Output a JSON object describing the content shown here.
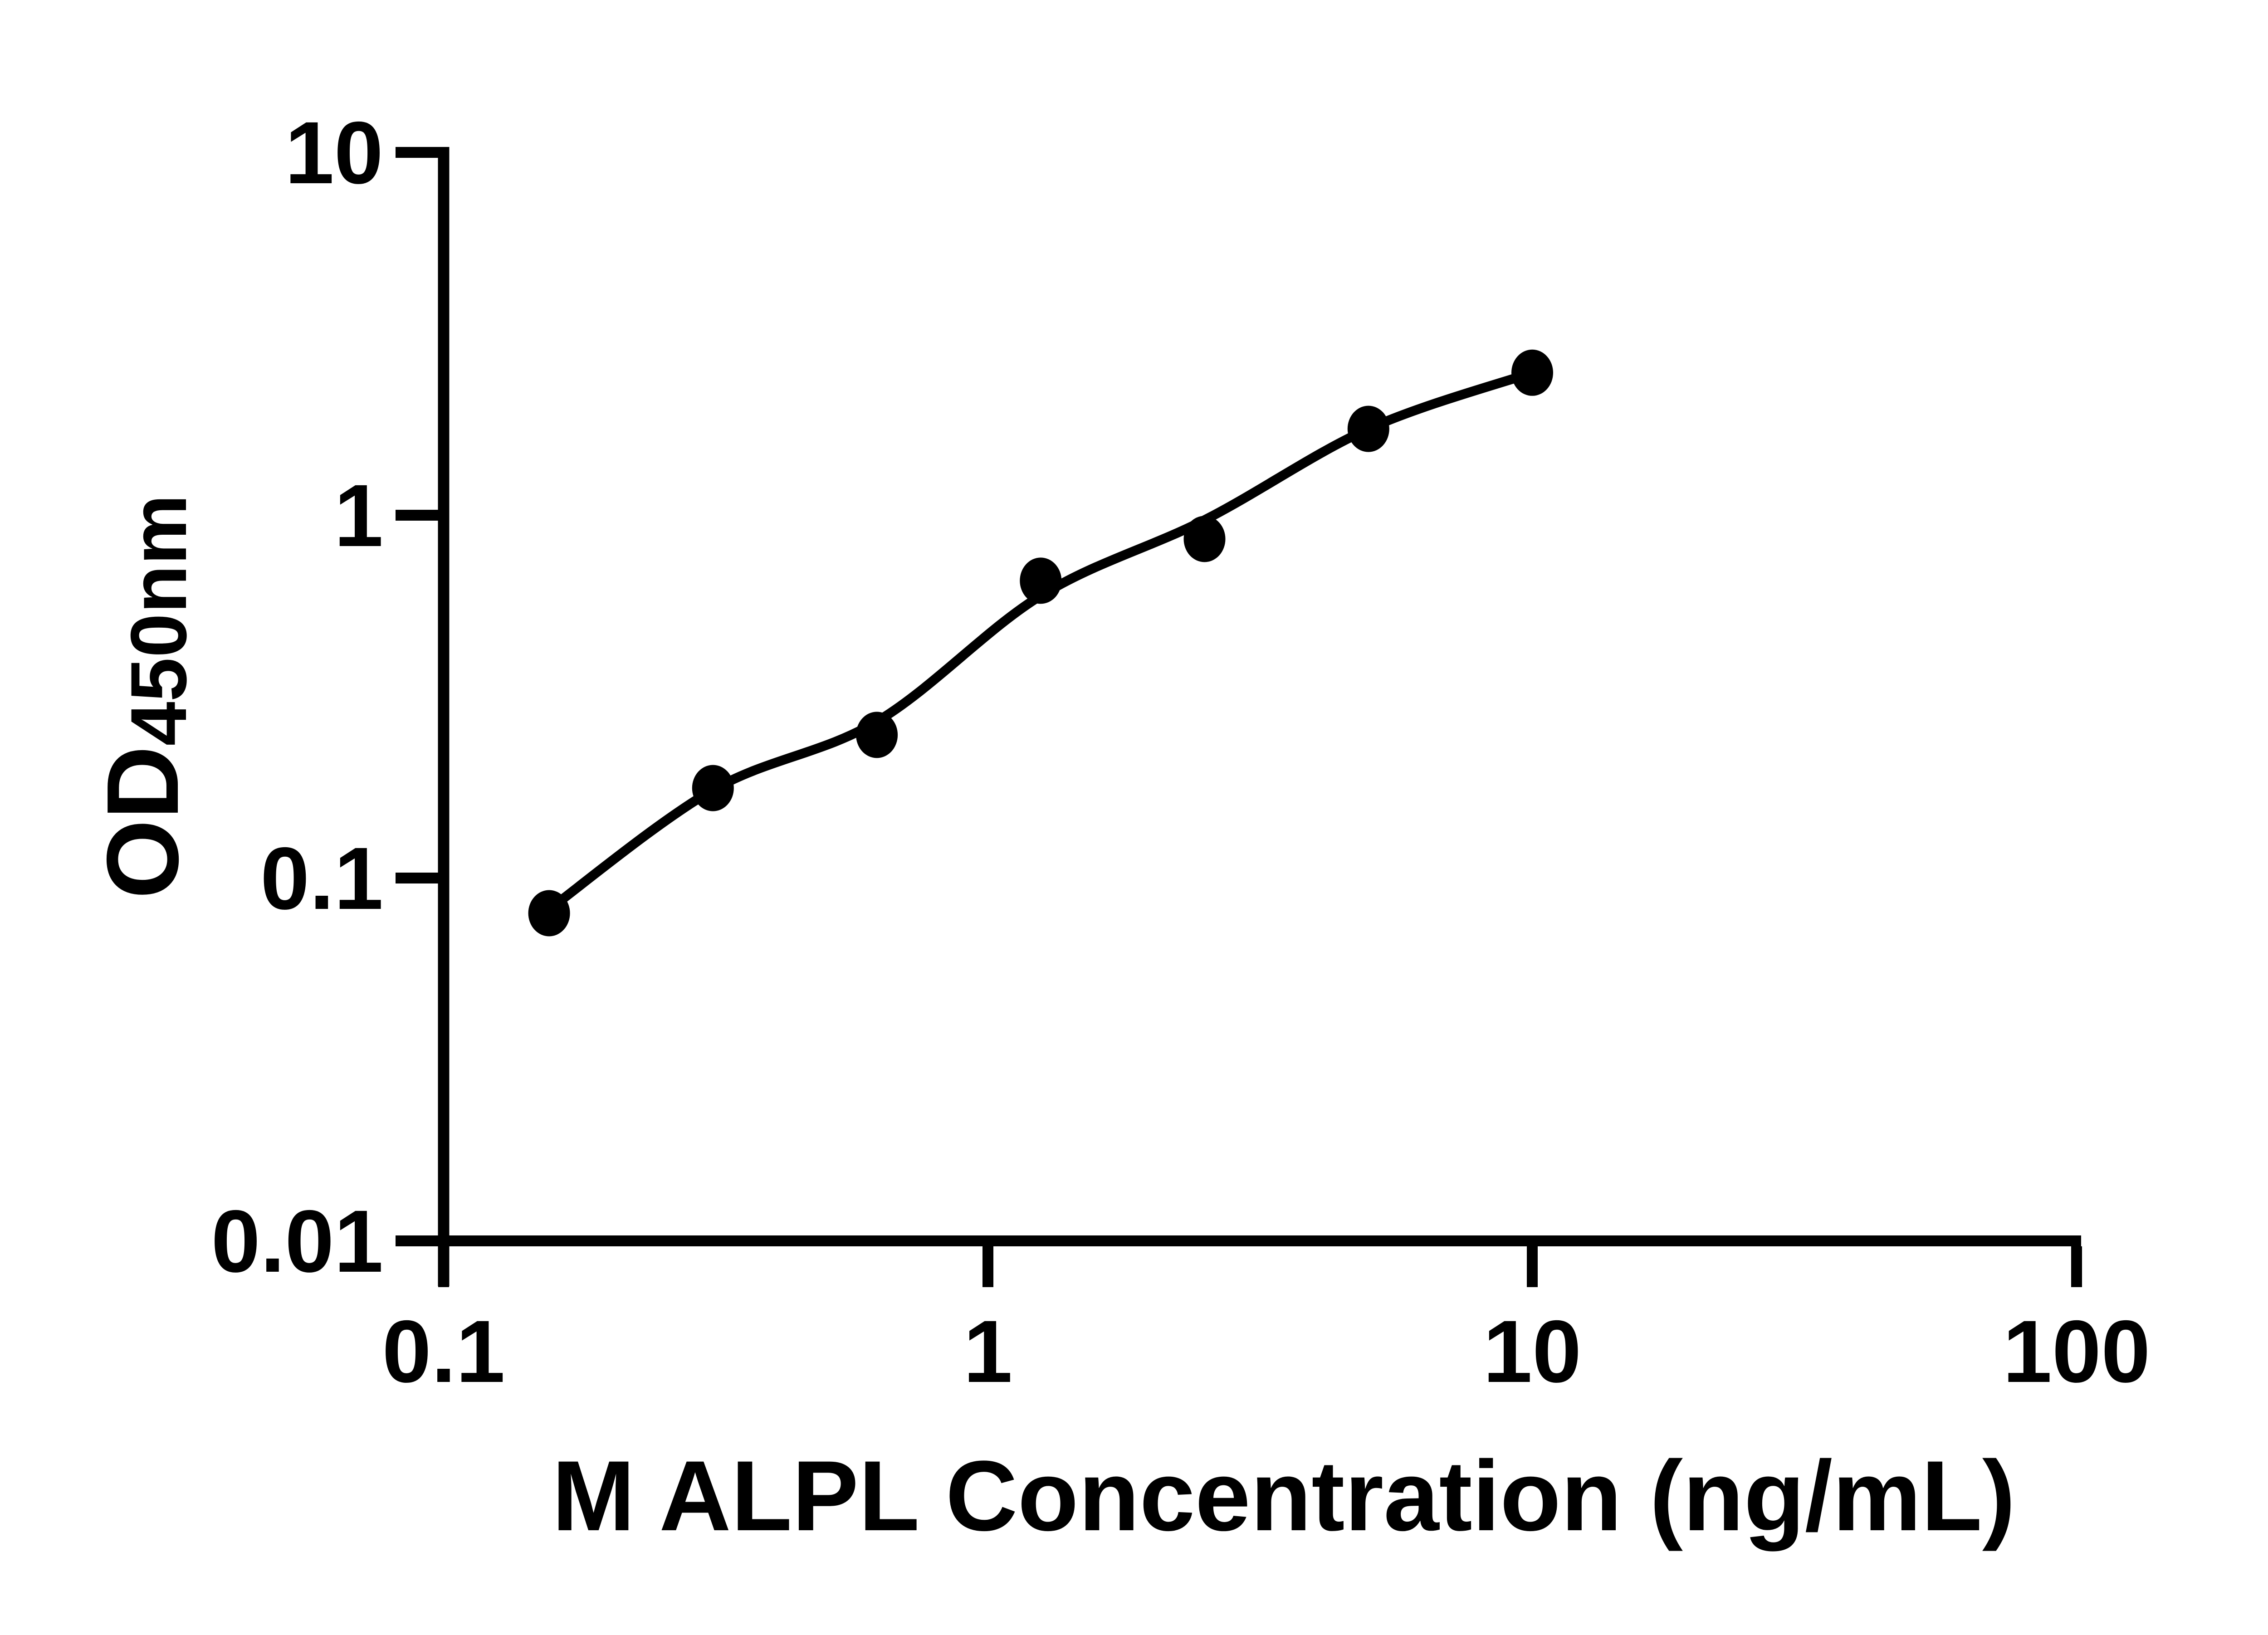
{
  "chart_data": {
    "type": "scatter",
    "subtype": "elisa-standard-curve-with-fit-line",
    "xlabel": "M ALPL Concentration (ng/mL)",
    "ylabel_main": "OD",
    "ylabel_sub": "450nm",
    "x_scale": "log",
    "y_scale": "log",
    "xlim": [
      0.1,
      100
    ],
    "ylim": [
      0.01,
      10
    ],
    "x_ticks": [
      "0.1",
      "1",
      "10",
      "100"
    ],
    "y_ticks": [
      "10",
      "1",
      "0.1",
      "0.01"
    ],
    "legend": "none",
    "grid": "off",
    "points": [
      {
        "x": 0.15625,
        "od": 0.08
      },
      {
        "x": 0.3125,
        "od": 0.177
      },
      {
        "x": 0.625,
        "od": 0.248
      },
      {
        "x": 1.25,
        "od": 0.66
      },
      {
        "x": 2.5,
        "od": 0.86
      },
      {
        "x": 5,
        "od": 1.73
      },
      {
        "x": 10,
        "od": 2.47
      }
    ],
    "fit_curve": [
      {
        "x": 0.15625,
        "od": 0.082
      },
      {
        "x": 0.3125,
        "od": 0.175
      },
      {
        "x": 0.625,
        "od": 0.27
      },
      {
        "x": 1.25,
        "od": 0.6
      },
      {
        "x": 2.5,
        "od": 0.97
      },
      {
        "x": 5,
        "od": 1.73
      },
      {
        "x": 10,
        "od": 2.47
      }
    ],
    "colors": {
      "ink": "#000000",
      "background": "#ffffff"
    }
  }
}
